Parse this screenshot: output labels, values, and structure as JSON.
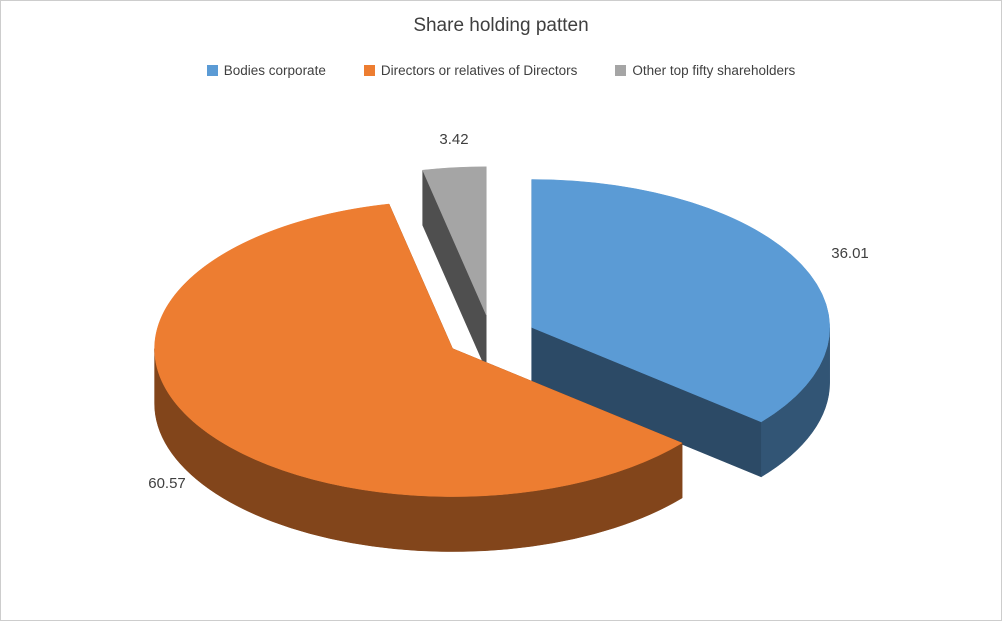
{
  "title": "Share holding patten",
  "legend": [
    {
      "label": "Bodies corporate",
      "color": "#5B9BD5"
    },
    {
      "label": "Directors or relatives of Directors",
      "color": "#ED7D31"
    },
    {
      "label": "Other top fifty shareholders",
      "color": "#A5A5A5"
    }
  ],
  "chart_data": {
    "type": "pie",
    "style": "3d-exploded",
    "title": "Share holding patten",
    "categories": [
      "Bodies corporate",
      "Directors or relatives of Directors",
      "Other top fifty shareholders"
    ],
    "values": [
      36.01,
      60.57,
      3.42
    ],
    "data_labels": [
      "36.01",
      "60.57",
      "3.42"
    ],
    "colors": [
      "#5B9BD5",
      "#ED7D31",
      "#A5A5A5"
    ],
    "start_angle_deg": 0,
    "direction": "clockwise",
    "legend_position": "top",
    "total": 100
  }
}
